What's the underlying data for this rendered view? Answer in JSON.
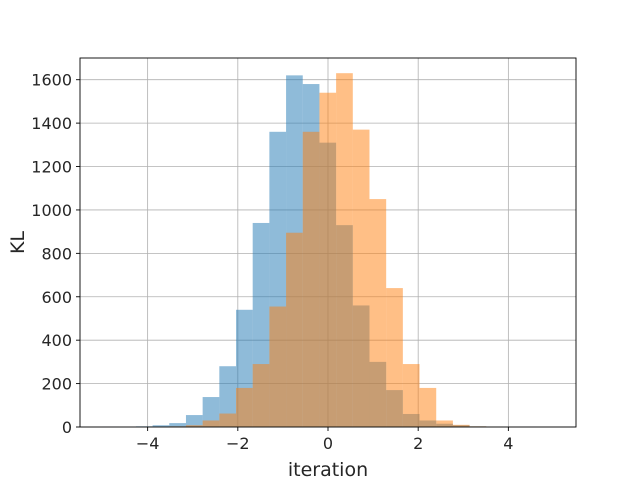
{
  "chart_data": {
    "type": "bar",
    "subtype": "histogram",
    "title": "",
    "xlabel": "iteration",
    "ylabel": "KL",
    "xlim": [
      -5.5,
      5.5
    ],
    "ylim": [
      0,
      1700
    ],
    "xticks": [
      -4,
      -2,
      0,
      2,
      4
    ],
    "xtick_labels": [
      "−4",
      "−2",
      "0",
      "2",
      "4"
    ],
    "yticks": [
      0,
      200,
      400,
      600,
      800,
      1000,
      1200,
      1400,
      1600
    ],
    "ytick_labels": [
      "0",
      "200",
      "400",
      "600",
      "800",
      "1000",
      "1200",
      "1400",
      "1600"
    ],
    "grid": true,
    "legend": "none",
    "overlap_color": "#c69b73",
    "series": [
      {
        "color": "#1f77b4",
        "opacity": 0.5,
        "bin_width": 0.37,
        "bin_start": -5.0,
        "counts": [
          1,
          0,
          3,
          8,
          18,
          55,
          138,
          280,
          540,
          940,
          1360,
          1620,
          1580,
          1310,
          930,
          560,
          300,
          170,
          60,
          30,
          15,
          8,
          3,
          1,
          0,
          1,
          0
        ]
      },
      {
        "color": "#ff7f0e",
        "opacity": 0.5,
        "bin_width": 0.37,
        "bin_start": -5.0,
        "counts": [
          0,
          0,
          0,
          1,
          3,
          8,
          30,
          62,
          180,
          290,
          555,
          895,
          1360,
          1540,
          1630,
          1370,
          1050,
          640,
          290,
          180,
          30,
          10,
          3,
          1,
          0,
          0,
          0
        ]
      }
    ]
  }
}
